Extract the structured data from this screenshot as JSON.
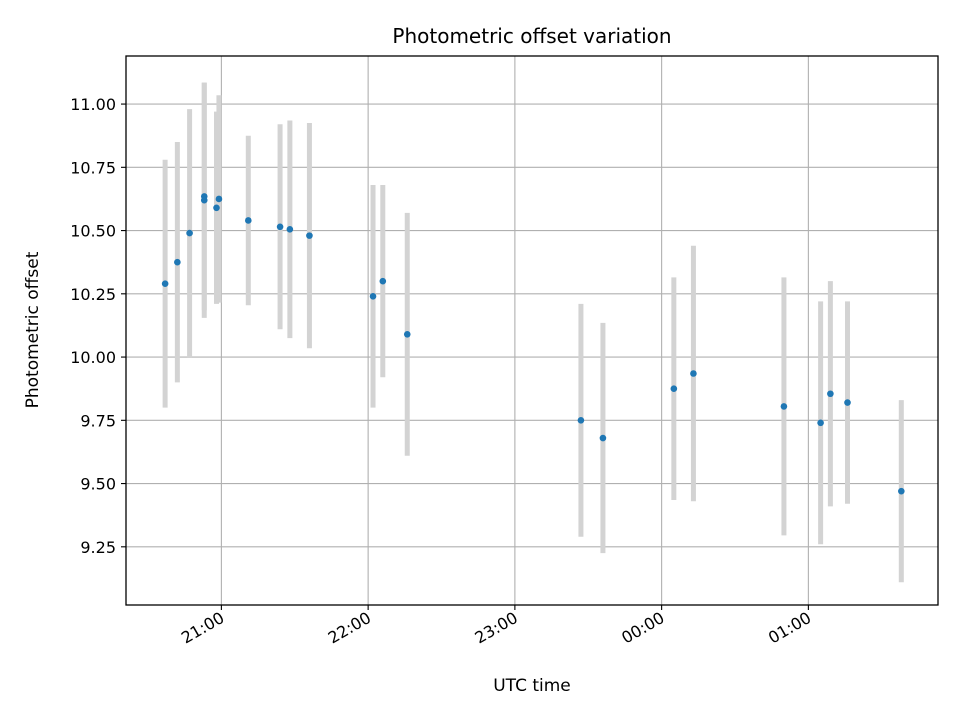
{
  "chart_data": {
    "type": "scatter",
    "title": "Photometric offset variation",
    "xlabel": "UTC time",
    "ylabel": "Photometric offset",
    "x_ticks": [
      "21:00",
      "22:00",
      "23:00",
      "00:00",
      "01:00"
    ],
    "y_ticks": [
      "9.25",
      "9.50",
      "9.75",
      "10.00",
      "10.25",
      "10.50",
      "10.75",
      "11.00"
    ],
    "xlim": [
      "20:21",
      "01:53"
    ],
    "ylim": [
      9.02,
      11.19
    ],
    "grid": true,
    "colors": {
      "point": "#1f77b4",
      "errorbar": "#d3d3d3",
      "grid": "#b0b0b0"
    },
    "points": [
      {
        "t": "20:37",
        "y": 10.29,
        "err": 0.49
      },
      {
        "t": "20:42",
        "y": 10.375,
        "err": 0.475
      },
      {
        "t": "20:47",
        "y": 10.49,
        "err": 0.49
      },
      {
        "t": "20:53",
        "y": 10.62,
        "err": 0.465
      },
      {
        "t": "20:53",
        "y": 10.635,
        "err": 0.45
      },
      {
        "t": "20:58",
        "y": 10.59,
        "err": 0.38
      },
      {
        "t": "20:59",
        "y": 10.625,
        "err": 0.41
      },
      {
        "t": "21:11",
        "y": 10.54,
        "err": 0.335
      },
      {
        "t": "21:24",
        "y": 10.515,
        "err": 0.405
      },
      {
        "t": "21:28",
        "y": 10.505,
        "err": 0.43
      },
      {
        "t": "21:36",
        "y": 10.48,
        "err": 0.445
      },
      {
        "t": "22:02",
        "y": 10.24,
        "err": 0.44
      },
      {
        "t": "22:06",
        "y": 10.3,
        "err": 0.38
      },
      {
        "t": "22:16",
        "y": 10.09,
        "err": 0.48
      },
      {
        "t": "23:27",
        "y": 9.75,
        "err": 0.46
      },
      {
        "t": "23:36",
        "y": 9.68,
        "err": 0.455
      },
      {
        "t": "00:05",
        "y": 9.875,
        "err": 0.44
      },
      {
        "t": "00:13",
        "y": 9.935,
        "err": 0.505
      },
      {
        "t": "00:50",
        "y": 9.805,
        "err": 0.51
      },
      {
        "t": "01:05",
        "y": 9.74,
        "err": 0.48
      },
      {
        "t": "01:09",
        "y": 9.855,
        "err": 0.445
      },
      {
        "t": "01:16",
        "y": 9.82,
        "err": 0.4
      },
      {
        "t": "01:38",
        "y": 9.47,
        "err": 0.36
      }
    ]
  }
}
